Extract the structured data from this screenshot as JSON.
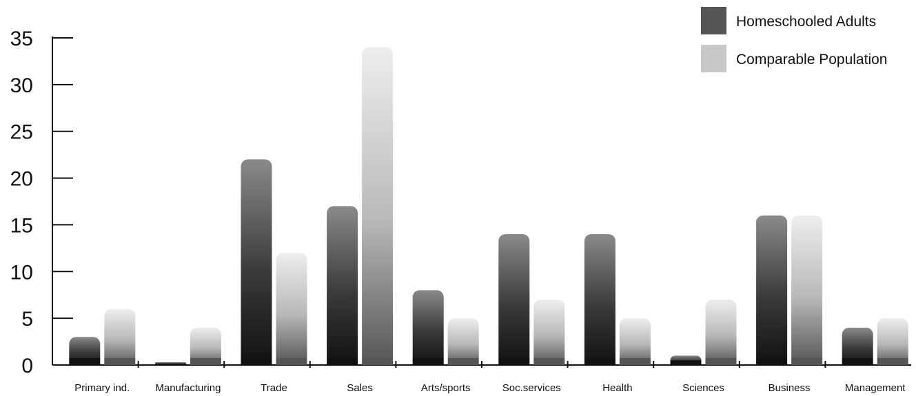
{
  "chart_data": {
    "type": "bar",
    "categories": [
      "Primary ind.",
      "Manufacturing",
      "Trade",
      "Sales",
      "Arts/sports",
      "Soc.services",
      "Health",
      "Sciences",
      "Business",
      "Management"
    ],
    "series": [
      {
        "name": "Homeschooled Adults",
        "values": [
          3,
          0.3,
          22,
          17,
          8,
          14,
          14,
          1,
          16,
          4
        ],
        "color": "#555555"
      },
      {
        "name": "Comparable Population",
        "values": [
          6,
          4,
          12,
          34,
          5,
          7,
          5,
          7,
          16,
          5
        ],
        "color": "#c8c8c8"
      }
    ],
    "yticks": [
      0,
      5,
      10,
      15,
      20,
      25,
      30,
      35
    ],
    "ylim": [
      0,
      35
    ],
    "grid": false,
    "legend_position": "top-right"
  }
}
